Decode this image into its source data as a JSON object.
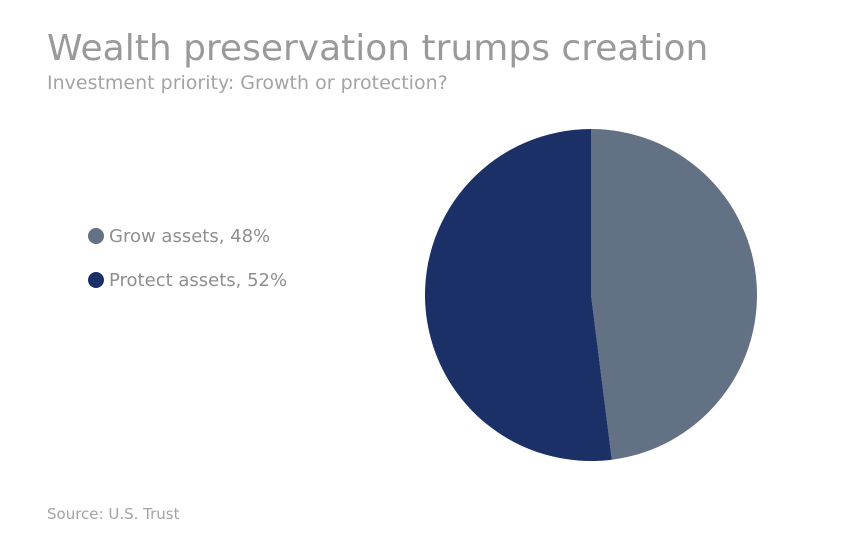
{
  "header": {
    "title": "Wealth preservation trumps creation",
    "subtitle": "Investment priority: Growth or protection?"
  },
  "footer": {
    "source": "Source: U.S. Trust"
  },
  "chart_data": {
    "type": "pie",
    "title": "Wealth preservation trumps creation",
    "subtitle": "Investment priority: Growth or protection?",
    "categories": [
      "Grow assets",
      "Protect assets"
    ],
    "values": [
      48,
      52
    ],
    "unit": "%",
    "legend_labels": [
      "Grow assets, 48%",
      "Protect assets, 52%"
    ],
    "colors": [
      "#627184",
      "#1a3066"
    ],
    "legend_position": "left",
    "start_angle": "12 o'clock",
    "direction": "clockwise"
  }
}
